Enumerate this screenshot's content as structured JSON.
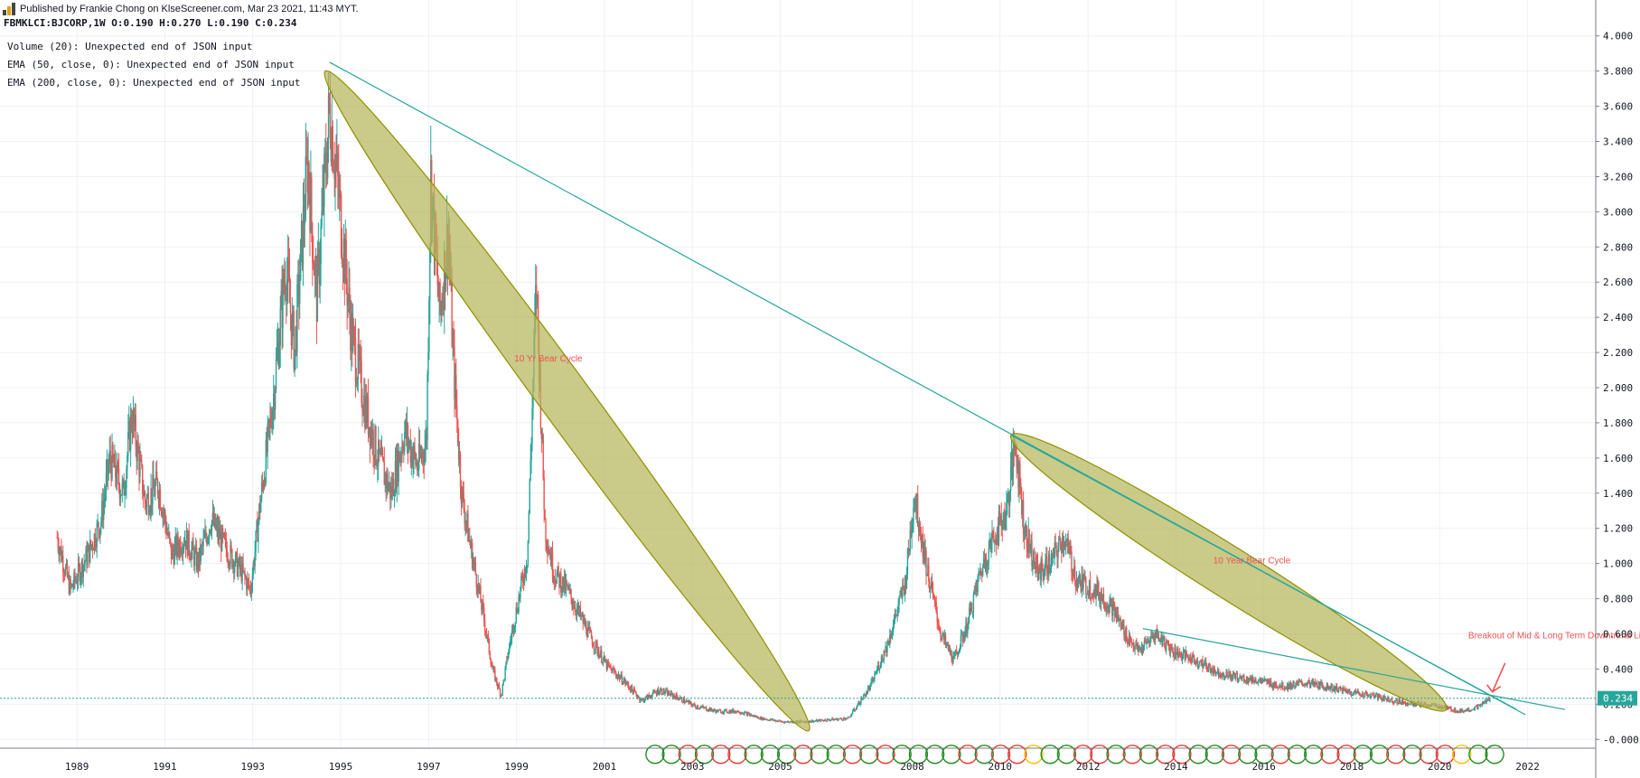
{
  "header": {
    "published": "Published by Frankie Chong on KlseScreener.com, Mar 23 2021, 11:43 MYT.",
    "ohlc": "FBMKLCI:BJCORP,1W  O:0.190 H:0.270 L:0.190 C:0.234"
  },
  "indicators": [
    "Volume (20): Unexpected end of JSON input",
    "EMA (50, close, 0): Unexpected end of JSON input",
    "EMA (200, close, 0): Unexpected end of JSON input"
  ],
  "colors": {
    "up": "#26a69a",
    "down": "#ef5350",
    "trend": "#26a69a",
    "ellipse": "#b5b65c",
    "ellipse_stroke": "#8f9000",
    "annotation": "#ef5350",
    "last_price": "#26a69a",
    "grid": "#eef1f6"
  },
  "chart_data": {
    "type": "candlestick",
    "symbol": "FBMKLCI:BJCORP",
    "interval": "1W",
    "ylim": [
      -0.05,
      4.05
    ],
    "xlim": [
      1987.3,
      2023.6
    ],
    "y_ticks": [
      "4.000",
      "3.800",
      "3.600",
      "3.400",
      "3.200",
      "3.000",
      "2.800",
      "2.600",
      "2.400",
      "2.200",
      "2.000",
      "1.800",
      "1.600",
      "1.400",
      "1.200",
      "1.000",
      "0.800",
      "0.600",
      "0.400",
      "0.200",
      "-0.000"
    ],
    "x_ticks": [
      "1989",
      "1991",
      "1993",
      "1995",
      "1997",
      "1999",
      "2001",
      "2003",
      "2005",
      "2008",
      "2010",
      "2012",
      "2014",
      "2016",
      "2018",
      "2020",
      "2022"
    ],
    "last_price": 0.234,
    "last_price_label": "0.234",
    "price_path": [
      [
        1988.6,
        1.15
      ],
      [
        1988.9,
        0.85
      ],
      [
        1989.3,
        1.05
      ],
      [
        1989.6,
        1.25
      ],
      [
        1989.8,
        1.6
      ],
      [
        1990.1,
        1.4
      ],
      [
        1990.3,
        1.85
      ],
      [
        1990.6,
        1.35
      ],
      [
        1990.9,
        1.45
      ],
      [
        1991.2,
        1.05
      ],
      [
        1991.5,
        1.15
      ],
      [
        1991.8,
        1.0
      ],
      [
        1992.1,
        1.25
      ],
      [
        1992.4,
        1.1
      ],
      [
        1992.8,
        0.95
      ],
      [
        1993.0,
        0.85
      ],
      [
        1993.2,
        1.3
      ],
      [
        1993.5,
        1.9
      ],
      [
        1993.8,
        2.7
      ],
      [
        1994.0,
        2.2
      ],
      [
        1994.3,
        3.3
      ],
      [
        1994.5,
        2.5
      ],
      [
        1994.8,
        3.6
      ],
      [
        1995.0,
        3.1
      ],
      [
        1995.3,
        2.3
      ],
      [
        1995.6,
        1.9
      ],
      [
        1995.9,
        1.6
      ],
      [
        1996.2,
        1.4
      ],
      [
        1996.5,
        1.75
      ],
      [
        1996.8,
        1.55
      ],
      [
        1997.0,
        1.7
      ],
      [
        1997.1,
        3.2
      ],
      [
        1997.3,
        2.4
      ],
      [
        1997.5,
        2.9
      ],
      [
        1997.6,
        2.2
      ],
      [
        1997.8,
        1.4
      ],
      [
        1998.0,
        1.1
      ],
      [
        1998.3,
        0.7
      ],
      [
        1998.5,
        0.4
      ],
      [
        1998.7,
        0.25
      ],
      [
        1998.9,
        0.55
      ],
      [
        1999.1,
        0.8
      ],
      [
        1999.3,
        1.05
      ],
      [
        1999.5,
        2.6
      ],
      [
        1999.7,
        1.2
      ],
      [
        1999.9,
        0.95
      ],
      [
        2000.2,
        0.85
      ],
      [
        2000.5,
        0.7
      ],
      [
        2000.8,
        0.55
      ],
      [
        2001.1,
        0.42
      ],
      [
        2001.5,
        0.33
      ],
      [
        2001.9,
        0.22
      ],
      [
        2002.3,
        0.28
      ],
      [
        2002.7,
        0.24
      ],
      [
        2003.1,
        0.19
      ],
      [
        2003.6,
        0.16
      ],
      [
        2004.1,
        0.16
      ],
      [
        2004.6,
        0.12
      ],
      [
        2005.1,
        0.1
      ],
      [
        2005.6,
        0.1
      ],
      [
        2006.1,
        0.11
      ],
      [
        2006.6,
        0.12
      ],
      [
        2007.1,
        0.3
      ],
      [
        2007.5,
        0.55
      ],
      [
        2007.9,
        0.9
      ],
      [
        2008.1,
        1.4
      ],
      [
        2008.4,
        0.95
      ],
      [
        2008.7,
        0.6
      ],
      [
        2009.0,
        0.45
      ],
      [
        2009.3,
        0.65
      ],
      [
        2009.6,
        0.95
      ],
      [
        2009.9,
        1.15
      ],
      [
        2010.2,
        1.3
      ],
      [
        2010.4,
        1.7
      ],
      [
        2010.6,
        1.2
      ],
      [
        2010.9,
        0.95
      ],
      [
        2011.2,
        1.0
      ],
      [
        2011.5,
        1.15
      ],
      [
        2011.8,
        0.9
      ],
      [
        2012.2,
        0.85
      ],
      [
        2012.6,
        0.75
      ],
      [
        2012.9,
        0.6
      ],
      [
        2013.2,
        0.5
      ],
      [
        2013.6,
        0.6
      ],
      [
        2014.0,
        0.5
      ],
      [
        2014.5,
        0.45
      ],
      [
        2015.0,
        0.38
      ],
      [
        2015.5,
        0.35
      ],
      [
        2016.0,
        0.33
      ],
      [
        2016.5,
        0.3
      ],
      [
        2017.0,
        0.32
      ],
      [
        2017.5,
        0.3
      ],
      [
        2018.0,
        0.27
      ],
      [
        2018.5,
        0.25
      ],
      [
        2019.0,
        0.22
      ],
      [
        2019.5,
        0.2
      ],
      [
        2020.0,
        0.19
      ],
      [
        2020.5,
        0.16
      ],
      [
        2020.9,
        0.18
      ],
      [
        2021.2,
        0.234
      ]
    ],
    "trend_lines": [
      {
        "from": [
          1994.8,
          3.85
        ],
        "to": [
          2022.0,
          0.14
        ]
      },
      {
        "from": [
          2010.3,
          1.73
        ],
        "to": [
          2021.8,
          0.17
        ]
      },
      {
        "from": [
          2013.3,
          0.63
        ],
        "to": [
          2022.9,
          0.17
        ]
      }
    ],
    "ellipses": [
      {
        "from": [
          1994.7,
          3.8
        ],
        "to": [
          2005.7,
          0.05
        ]
      },
      {
        "from": [
          2010.3,
          1.73
        ],
        "to": [
          2020.2,
          0.17
        ]
      }
    ],
    "annotations": [
      {
        "text": "10 Yr Bear Cycle",
        "at": [
          1999.0,
          2.15
        ]
      },
      {
        "text": "10 Year Bear Cycle",
        "at": [
          2014.9,
          1.0
        ]
      },
      {
        "text": "Breakout of Mid & Long Term Downtrend Line With Huge Volume",
        "at": [
          2020.7,
          0.575
        ]
      }
    ],
    "signal_circles": {
      "start": 2002.2,
      "end": 2021.3,
      "y": -0.085,
      "count": 52,
      "colors": [
        "g",
        "g",
        "r",
        "g",
        "r",
        "r",
        "g",
        "g",
        "g",
        "r",
        "g",
        "g",
        "r",
        "g",
        "r",
        "g",
        "g",
        "g",
        "g",
        "r",
        "g",
        "r",
        "r",
        "y",
        "g",
        "g",
        "r",
        "r",
        "g",
        "r",
        "g",
        "r",
        "r",
        "g",
        "g",
        "r",
        "g",
        "g",
        "r",
        "g",
        "g",
        "r",
        "r",
        "g",
        "g",
        "r",
        "g",
        "r",
        "r",
        "y",
        "g",
        "g"
      ]
    }
  }
}
